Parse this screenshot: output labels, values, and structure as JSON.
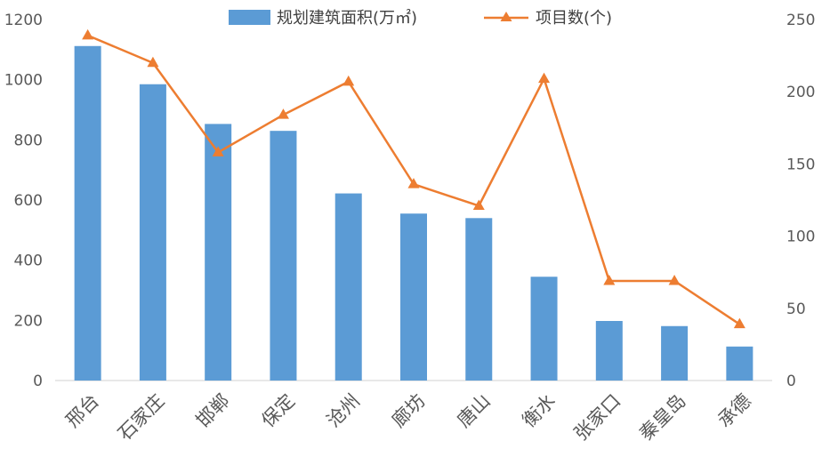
{
  "chart_data": {
    "type": "bar+line",
    "categories": [
      "邢台",
      "石家庄",
      "邯郸",
      "保定",
      "沧州",
      "廊坊",
      "唐山",
      "衡水",
      "张家口",
      "秦皇岛",
      "承德"
    ],
    "series": [
      {
        "name": "规划建筑面积(万㎡)",
        "type": "bar",
        "axis": "left",
        "color": "#5b9bd5",
        "values": [
          1112,
          985,
          853,
          830,
          622,
          555,
          540,
          345,
          198,
          181,
          113
        ]
      },
      {
        "name": "项目数(个)",
        "type": "line",
        "axis": "right",
        "color": "#ed7d31",
        "marker": "triangle",
        "values": [
          239,
          220,
          158,
          184,
          207,
          136,
          121,
          209,
          69,
          69,
          39
        ]
      }
    ],
    "y_left": {
      "min": 0,
      "max": 1200,
      "ticks": [
        0,
        200,
        400,
        600,
        800,
        1000,
        1200
      ]
    },
    "y_right": {
      "min": 0,
      "max": 250,
      "ticks": [
        0,
        50,
        100,
        150,
        200,
        250
      ]
    },
    "legend_position": "top-center",
    "grid": false
  }
}
